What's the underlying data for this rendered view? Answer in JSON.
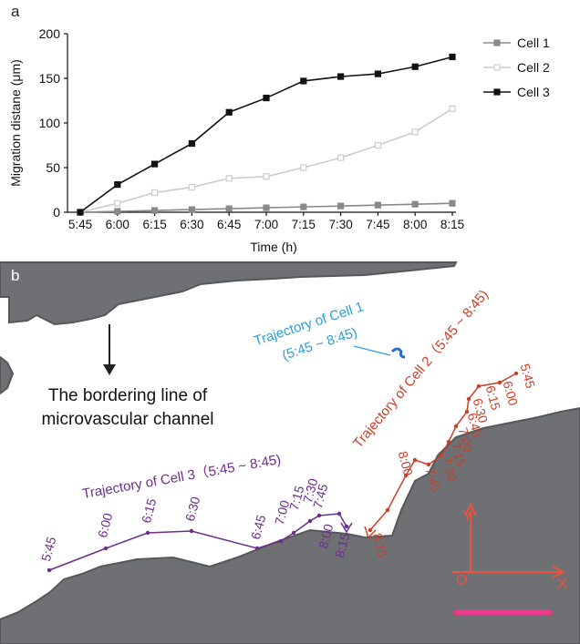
{
  "panel_a": {
    "label": "a"
  },
  "panel_b": {
    "label": "b",
    "annotation_line1": "The bordering line of",
    "annotation_line2": "microvascular channel",
    "cell1_label_line1": "Trajectory of Cell 1",
    "cell1_label_line2": "(5:45 ~ 8:45)",
    "cell2_label": "Trajectory of Cell 2（5:45 ~ 8:45)",
    "cell3_label": "Trajectory of Cell 3（5:45 ~ 8:45)",
    "axis_y_label": "Y",
    "axis_x_label": "X",
    "origin_label": "O",
    "colors": {
      "wall": "#6f7073",
      "wall_edge": "#56575a",
      "cell1": "#2a9fd6",
      "cell2": "#c8402a",
      "cell3": "#6b2d8a",
      "axes": "#f0523a",
      "scale_bar": "#e8398a"
    },
    "cell2_times": [
      "5:45",
      "6:00",
      "6:15",
      "6:30",
      "6:45",
      "7:00",
      "7:15",
      "7:30",
      "7:45",
      "8:00",
      "8:15"
    ],
    "cell3_times": [
      "5:45",
      "6:00",
      "6:15",
      "6:30",
      "6:45",
      "7:00",
      "7:15",
      "7:30",
      "7:45",
      "8:00",
      "8:15"
    ]
  },
  "chart_data": {
    "type": "line",
    "xlabel": "Time (h)",
    "ylabel": "Migration distane (μm)",
    "categories": [
      "5:45",
      "6:00",
      "6:15",
      "6:30",
      "6:45",
      "7:00",
      "7:15",
      "7:30",
      "7:45",
      "8:00",
      "8:15"
    ],
    "ylim": [
      0,
      200
    ],
    "yticks": [
      0,
      50,
      100,
      150,
      200
    ],
    "legend_position": "right",
    "series": [
      {
        "name": "Cell 1",
        "values": [
          0,
          1,
          2,
          3,
          4,
          5,
          6,
          7,
          8,
          9,
          10
        ],
        "color": "#8a8a8a",
        "marker": "filled-square"
      },
      {
        "name": "Cell 2",
        "values": [
          0,
          10,
          22,
          28,
          38,
          40,
          50,
          61,
          75,
          90,
          116
        ],
        "color": "#cccccc",
        "marker": "open-square"
      },
      {
        "name": "Cell 3",
        "values": [
          0,
          31,
          54,
          77,
          112,
          128,
          147,
          152,
          155,
          163,
          174
        ],
        "color": "#111111",
        "marker": "filled-square"
      }
    ]
  }
}
